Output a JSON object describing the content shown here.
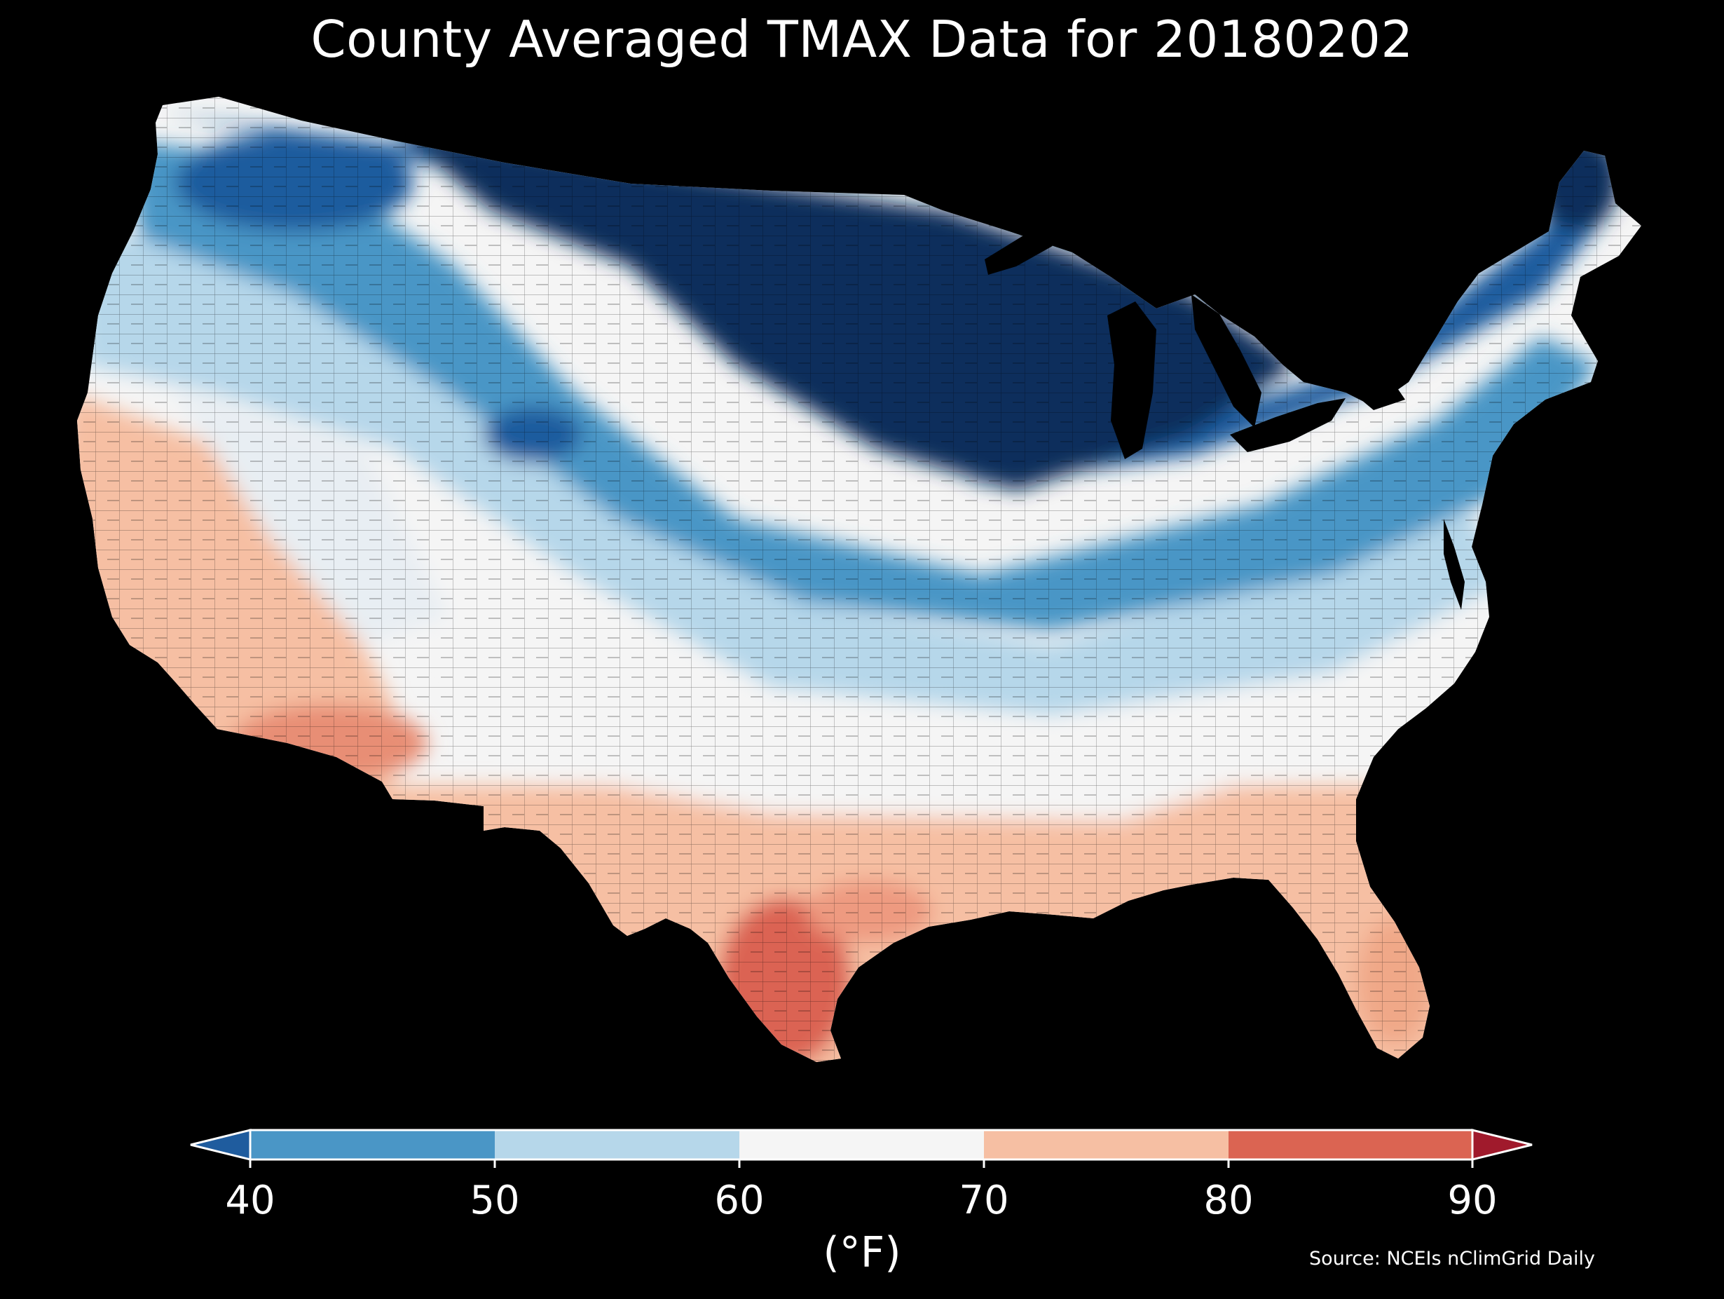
{
  "title": "County Averaged TMAX Data for 20180202",
  "colorbar": {
    "label": "(°F)",
    "ticks": [
      "40",
      "50",
      "60",
      "70",
      "80",
      "90"
    ],
    "bins": [
      {
        "range": "<40",
        "color": "#1f5c9e"
      },
      {
        "range": "40-50",
        "color": "#4a96c6"
      },
      {
        "range": "50-60",
        "color": "#b6d7ea"
      },
      {
        "range": "60-70",
        "color": "#f5f5f5"
      },
      {
        "range": "70-80",
        "color": "#f6bfa3"
      },
      {
        "range": "80-90",
        "color": "#db6452"
      },
      {
        "range": ">90",
        "color": "#a01a2c"
      }
    ]
  },
  "source": "Source: NCEIs nClimGrid Daily",
  "colors": {
    "background": "#000000",
    "very_cold": "#0b2e5c",
    "cold": "#1f5c9e",
    "cool": "#4a96c6",
    "mild": "#b6d7ea",
    "neutral": "#f5f5f5",
    "warm": "#f6bfa3",
    "hot": "#db6452"
  }
}
